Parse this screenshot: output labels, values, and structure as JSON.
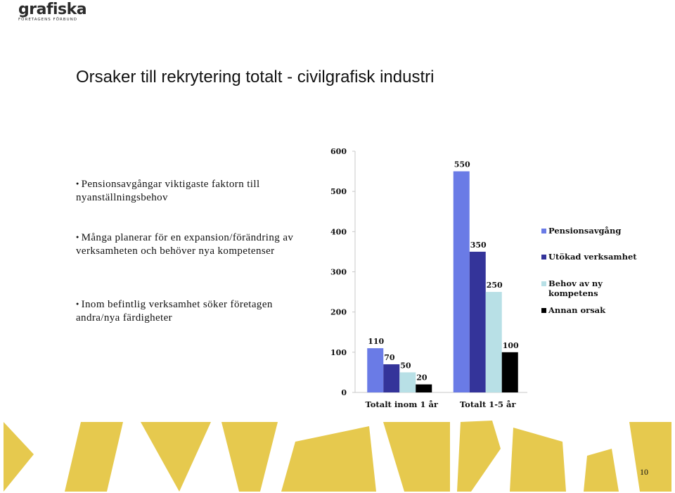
{
  "logo": {
    "main": "grafiska",
    "sub": "FÖRETAGENS FÖRBUND"
  },
  "title": "Orsaker till rekrytering totalt - civilgrafisk industri",
  "bullets": [
    "Pensionsavgångar viktigaste faktorn till nyanställningsbehov",
    "Många planerar för en expansion/förändring av verksamheten och behöver nya kompetenser",
    "Inom befintlig verksamhet söker företagen andra/nya färdigheter"
  ],
  "page_number": "10",
  "chart_data": {
    "type": "bar",
    "title": "",
    "xlabel": "",
    "ylabel": "",
    "categories": [
      "Totalt inom 1 år",
      "Totalt 1-5 år"
    ],
    "series": [
      {
        "name": "Pensionsavgång",
        "values": [
          110,
          550
        ],
        "color": "#6a7be6"
      },
      {
        "name": "Utökad verksamhet",
        "values": [
          70,
          350
        ],
        "color": "#34349a"
      },
      {
        "name": "Behov av ny kompetens",
        "values": [
          50,
          250
        ],
        "color": "#b8e0e6"
      },
      {
        "name": "Annan orsak",
        "values": [
          20,
          100
        ],
        "color": "#000000"
      }
    ],
    "ylim": [
      0,
      600
    ],
    "yticks": [
      0,
      100,
      200,
      300,
      400,
      500,
      600
    ],
    "data_labels": true,
    "grid": false,
    "legend": "right"
  },
  "decor_color": "#e6c94e"
}
